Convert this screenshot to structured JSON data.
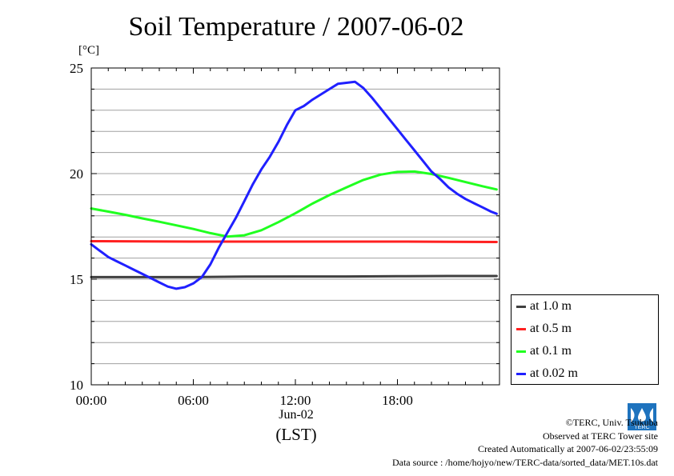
{
  "title": "Soil Temperature / 2007-06-02",
  "unit_label": "[°C]",
  "date_label": "Jun-02",
  "timezone_label": "(LST)",
  "footer": {
    "copyright": "©TERC, Univ. Tsukuba",
    "observed": "Observed at TERC Tower site",
    "created": "Created Automatically at 2007-06-02/23:55:09",
    "source": "Data source : /home/hojyo/new/TERC-data/sorted_data/MET.10s.dat"
  },
  "logo_text": "TERC",
  "colors": {
    "at_1.0m": "#404040",
    "at_0.5m": "#ff2020",
    "at_0.1m": "#20ff20",
    "at_0.02m": "#2020ff",
    "grid": "#a0a0a0",
    "logo": "#1e73be"
  },
  "chart_data": {
    "type": "line",
    "title": "Soil Temperature / 2007-06-02",
    "xlabel": "(LST)",
    "ylabel": "[°C]",
    "xlim": [
      0,
      24
    ],
    "ylim": [
      10,
      25
    ],
    "x_ticks": [
      {
        "value": 0,
        "label": "00:00"
      },
      {
        "value": 6,
        "label": "06:00"
      },
      {
        "value": 12,
        "label": "12:00"
      },
      {
        "value": 18,
        "label": "18:00"
      }
    ],
    "y_ticks": [
      {
        "value": 10,
        "label": "10"
      },
      {
        "value": 15,
        "label": "15"
      },
      {
        "value": 20,
        "label": "20"
      },
      {
        "value": 25,
        "label": "25"
      }
    ],
    "grid": "horizontal",
    "legend_position": "bottom-right outside",
    "series": [
      {
        "name": "at 1.0 m",
        "color": "#404040",
        "x": [
          0,
          3,
          6,
          9,
          12,
          15,
          18,
          21,
          23.83
        ],
        "y": [
          15.1,
          15.1,
          15.1,
          15.12,
          15.13,
          15.13,
          15.14,
          15.15,
          15.15
        ]
      },
      {
        "name": "at 0.5 m",
        "color": "#ff2020",
        "x": [
          0,
          3,
          6,
          9,
          12,
          15,
          18,
          21,
          23.83
        ],
        "y": [
          16.8,
          16.79,
          16.78,
          16.78,
          16.78,
          16.78,
          16.78,
          16.77,
          16.76
        ]
      },
      {
        "name": "at 0.1 m",
        "color": "#20ff20",
        "x": [
          0,
          1,
          2,
          3,
          4,
          5,
          6,
          7,
          8,
          9,
          10,
          11,
          12,
          13,
          14,
          15,
          16,
          17,
          18,
          19,
          20,
          21,
          22,
          23,
          23.83
        ],
        "y": [
          18.35,
          18.2,
          18.05,
          17.88,
          17.72,
          17.55,
          17.38,
          17.18,
          17.02,
          17.08,
          17.32,
          17.7,
          18.12,
          18.58,
          18.98,
          19.35,
          19.7,
          19.95,
          20.08,
          20.1,
          19.98,
          19.8,
          19.6,
          19.4,
          19.25
        ]
      },
      {
        "name": "at 0.02 m",
        "color": "#2020ff",
        "x": [
          0,
          0.5,
          1,
          1.5,
          2,
          2.5,
          3,
          3.5,
          4,
          4.5,
          5,
          5.5,
          6,
          6.5,
          7,
          7.5,
          8,
          8.5,
          9,
          9.5,
          10,
          10.5,
          11,
          11.5,
          12,
          12.5,
          13,
          13.5,
          14,
          14.5,
          15,
          15.5,
          16,
          16.5,
          17,
          17.5,
          18,
          18.5,
          19,
          19.5,
          20,
          20.5,
          21,
          21.5,
          22,
          22.5,
          23,
          23.5,
          23.83
        ],
        "y": [
          16.65,
          16.35,
          16.05,
          15.85,
          15.65,
          15.45,
          15.25,
          15.05,
          14.85,
          14.65,
          14.55,
          14.62,
          14.8,
          15.1,
          15.7,
          16.5,
          17.2,
          17.9,
          18.7,
          19.5,
          20.2,
          20.8,
          21.5,
          22.3,
          23.0,
          23.2,
          23.5,
          23.75,
          24.0,
          24.25,
          24.3,
          24.35,
          24.05,
          23.6,
          23.1,
          22.6,
          22.1,
          21.6,
          21.1,
          20.6,
          20.1,
          19.75,
          19.35,
          19.05,
          18.8,
          18.6,
          18.4,
          18.2,
          18.1
        ]
      }
    ]
  }
}
